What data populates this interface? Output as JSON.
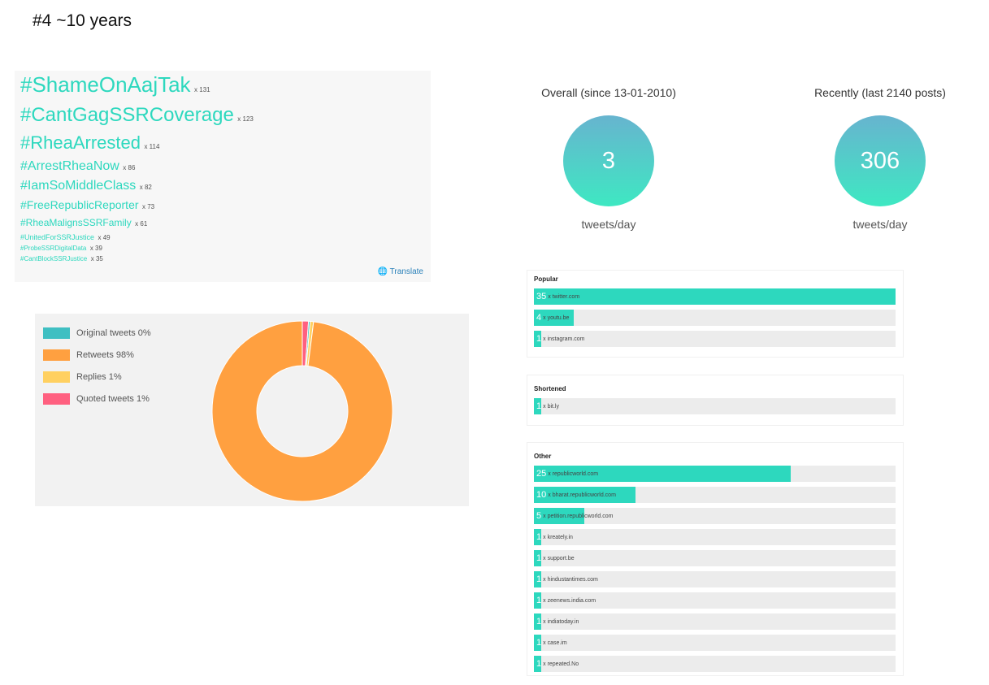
{
  "page_title": "#4 ~10 years",
  "hashtags": [
    {
      "tag": "#ShameOnAajTak",
      "count": "x 131"
    },
    {
      "tag": "#CantGagSSRCoverage",
      "count": "x 123"
    },
    {
      "tag": "#RheaArrested",
      "count": "x 114"
    },
    {
      "tag": "#ArrestRheaNow",
      "count": "x 86"
    },
    {
      "tag": "#IamSoMiddleClass",
      "count": "x 82"
    },
    {
      "tag": "#FreeRepublicReporter",
      "count": "x 73"
    },
    {
      "tag": "#RheaMalignsSSRFamily",
      "count": "x 61"
    },
    {
      "tag": "#UnitedForSSRJustice",
      "count": "x 49"
    },
    {
      "tag": "#ProbeSSRDigitalData",
      "count": "x 39"
    },
    {
      "tag": "#CantBlockSSRJustice",
      "count": "x 35"
    }
  ],
  "translate_label": "Translate",
  "tweet_types": {
    "legend": [
      {
        "label": "Original tweets 0%",
        "color": "#3fbfc2"
      },
      {
        "label": "Retweets 98%",
        "color": "#ffa040"
      },
      {
        "label": "Replies 1%",
        "color": "#ffd060"
      },
      {
        "label": "Quoted tweets 1%",
        "color": "#ff6080"
      }
    ]
  },
  "chart_data": {
    "type": "pie",
    "categories": [
      "Original tweets",
      "Retweets",
      "Replies",
      "Quoted tweets"
    ],
    "values": [
      0.3,
      98,
      0.6,
      1.1
    ],
    "colors": [
      "#3fbfc2",
      "#ffa040",
      "#ffd060",
      "#ff6080"
    ],
    "legend_position": "left"
  },
  "stats": {
    "overall": {
      "label": "Overall (since 13-01-2010)",
      "value": "3",
      "unit": "tweets/day"
    },
    "recent": {
      "label": "Recently (last 2140 posts)",
      "value": "306",
      "unit": "tweets/day"
    }
  },
  "domains": {
    "popular": {
      "title": "Popular",
      "items": [
        {
          "count": "35",
          "domain": "x twitter.com",
          "fraction": 1.0
        },
        {
          "count": "4",
          "domain": "x youtu.be",
          "fraction": 0.11
        },
        {
          "count": "1",
          "domain": "x instagram.com",
          "fraction": 0.02
        }
      ]
    },
    "shortened": {
      "title": "Shortened",
      "items": [
        {
          "count": "1",
          "domain": "x bit.ly",
          "fraction": 0.02
        }
      ]
    },
    "other": {
      "title": "Other",
      "items": [
        {
          "count": "25",
          "domain": "x republicworld.com",
          "fraction": 0.71
        },
        {
          "count": "10",
          "domain": "x bharat.republicworld.com",
          "fraction": 0.28
        },
        {
          "count": "5",
          "domain": "x petition.republicworld.com",
          "fraction": 0.14
        },
        {
          "count": "1",
          "domain": "x kreately.in",
          "fraction": 0.02
        },
        {
          "count": "1",
          "domain": "x support.be",
          "fraction": 0.02
        },
        {
          "count": "1",
          "domain": "x hindustantimes.com",
          "fraction": 0.02
        },
        {
          "count": "1",
          "domain": "x zeenews.india.com",
          "fraction": 0.02
        },
        {
          "count": "1",
          "domain": "x indiatoday.in",
          "fraction": 0.02
        },
        {
          "count": "1",
          "domain": "x case.im",
          "fraction": 0.02
        },
        {
          "count": "1",
          "domain": "x repeated.No",
          "fraction": 0.02
        }
      ]
    }
  }
}
